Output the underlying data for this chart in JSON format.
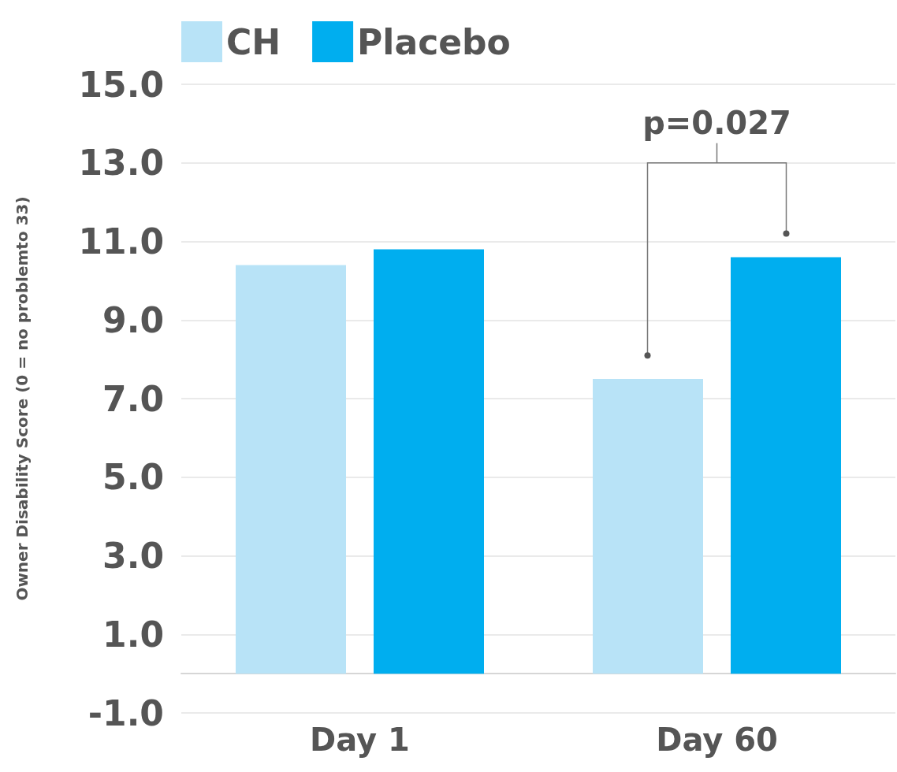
{
  "chart_data": {
    "type": "bar",
    "ylabel": "Owner Disability Score (0 = no problemto 33)",
    "categories": [
      "Day 1",
      "Day 60"
    ],
    "series": [
      {
        "name": "CH",
        "color": "#b8e3f7",
        "values": [
          10.4,
          7.5
        ]
      },
      {
        "name": "Placebo",
        "color": "#00aeef",
        "values": [
          10.8,
          10.6
        ]
      }
    ],
    "ylim": [
      -1,
      15
    ],
    "yticks": [
      {
        "value": -1,
        "label": "-1.0"
      },
      {
        "value": 1,
        "label": "1.0"
      },
      {
        "value": 3,
        "label": "3.0"
      },
      {
        "value": 5,
        "label": "5.0"
      },
      {
        "value": 7,
        "label": "7.0"
      },
      {
        "value": 9,
        "label": "9.0"
      },
      {
        "value": 11,
        "label": "11.0"
      },
      {
        "value": 13,
        "label": "13.0"
      },
      {
        "value": 15,
        "label": "15.0"
      }
    ],
    "grid": "y",
    "legend": "top left",
    "annotations": [
      "p=0.027"
    ]
  }
}
